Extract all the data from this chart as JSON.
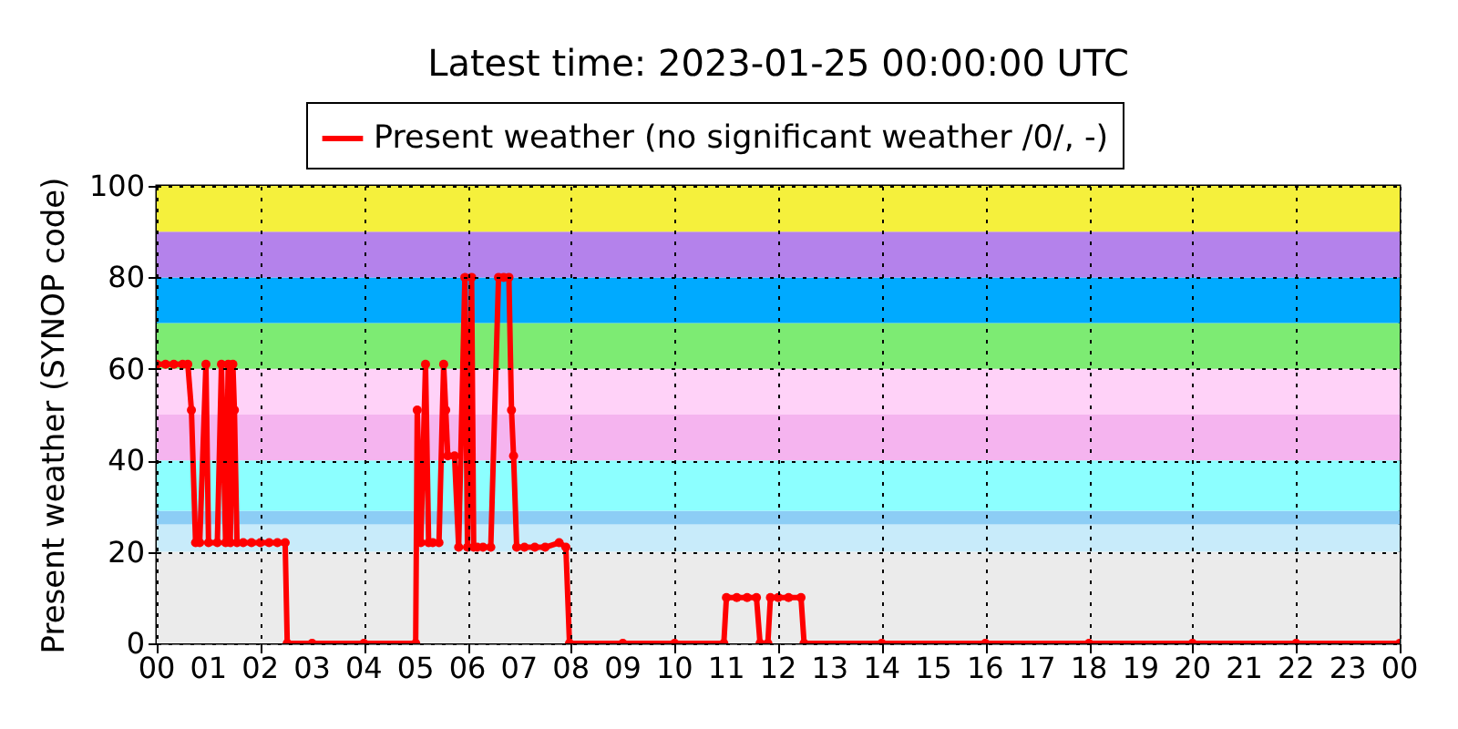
{
  "chart_data": {
    "type": "line",
    "title": "Latest time: 2023-01-25 00:00:00 UTC",
    "ylabel": "Present weather (SYNOP code)",
    "series": [
      {
        "name": "Present weather (no significant weather /0/, -)",
        "color": "#ff0000",
        "x": [
          0,
          0.17,
          0.33,
          0.5,
          0.6,
          0.67,
          0.75,
          0.83,
          0.95,
          1.0,
          1.17,
          1.25,
          1.33,
          1.38,
          1.42,
          1.47,
          1.5,
          1.55,
          1.67,
          1.83,
          2.0,
          2.17,
          2.33,
          2.48,
          2.52,
          3,
          4,
          5.0,
          5.03,
          5.1,
          5.19,
          5.25,
          5.33,
          5.45,
          5.54,
          5.58,
          5.62,
          5.75,
          5.83,
          5.95,
          6.0,
          6.08,
          6.12,
          6.19,
          6.3,
          6.45,
          6.6,
          6.7,
          6.8,
          6.85,
          6.89,
          6.95,
          7.1,
          7.3,
          7.5,
          7.77,
          7.9,
          7.97,
          9,
          10,
          10.95,
          11.0,
          11.2,
          11.4,
          11.58,
          11.65,
          11.8,
          11.85,
          12.0,
          12.2,
          12.44,
          12.5,
          14,
          16,
          18,
          20,
          22,
          24
        ],
        "values": [
          61,
          61,
          61,
          61,
          61,
          51,
          22,
          22,
          61,
          22,
          22,
          61,
          22,
          61,
          22,
          61,
          51,
          22,
          22,
          22,
          22,
          22,
          22,
          22,
          0,
          0,
          0,
          0,
          51,
          22,
          61,
          22,
          22,
          22,
          61,
          51,
          41,
          41,
          21,
          80,
          21,
          80,
          21,
          21,
          21,
          21,
          80,
          80,
          80,
          51,
          41,
          21,
          21,
          21,
          21,
          22,
          21,
          0,
          0,
          0,
          0,
          10,
          10,
          10,
          10,
          0,
          0,
          10,
          10,
          10,
          10,
          0,
          0,
          0,
          0,
          0,
          0,
          0
        ]
      }
    ],
    "xlim": [
      0,
      24
    ],
    "xticks": [
      {
        "value": 0,
        "label": "00"
      },
      {
        "value": 1,
        "label": "01"
      },
      {
        "value": 2,
        "label": "02"
      },
      {
        "value": 3,
        "label": "03"
      },
      {
        "value": 4,
        "label": "04"
      },
      {
        "value": 5,
        "label": "05"
      },
      {
        "value": 6,
        "label": "06"
      },
      {
        "value": 7,
        "label": "07"
      },
      {
        "value": 8,
        "label": "08"
      },
      {
        "value": 9,
        "label": "09"
      },
      10,
      11,
      12,
      13,
      14,
      15,
      16,
      17,
      18,
      19,
      20,
      21,
      22,
      23,
      {
        "value": 24,
        "label": "00"
      }
    ],
    "ylim": [
      0,
      100
    ],
    "yticks": [
      0,
      20,
      40,
      60,
      80,
      100
    ],
    "bands": [
      {
        "axis": "y",
        "from": 0,
        "to": 20,
        "color": "#ebebeb"
      },
      {
        "axis": "y",
        "from": 20,
        "to": 26,
        "color": "#c8ebfa"
      },
      {
        "axis": "y",
        "from": 26,
        "to": 29,
        "color": "#8ccdf5"
      },
      {
        "axis": "y",
        "from": 29,
        "to": 40,
        "color": "#8cffff"
      },
      {
        "axis": "y",
        "from": 40,
        "to": 50,
        "color": "#f5b4ef"
      },
      {
        "axis": "y",
        "from": 50,
        "to": 60,
        "color": "#ffd2f8"
      },
      {
        "axis": "y",
        "from": 60,
        "to": 70,
        "color": "#7deb73"
      },
      {
        "axis": "y",
        "from": 70,
        "to": 80,
        "color": "#00aaff"
      },
      {
        "axis": "y",
        "from": 80,
        "to": 90,
        "color": "#b482eb"
      },
      {
        "axis": "y",
        "from": 90,
        "to": 100,
        "color": "#f5f03c"
      }
    ],
    "grid": true,
    "legend": "top",
    "marker": "circle",
    "line_style": "solid"
  }
}
